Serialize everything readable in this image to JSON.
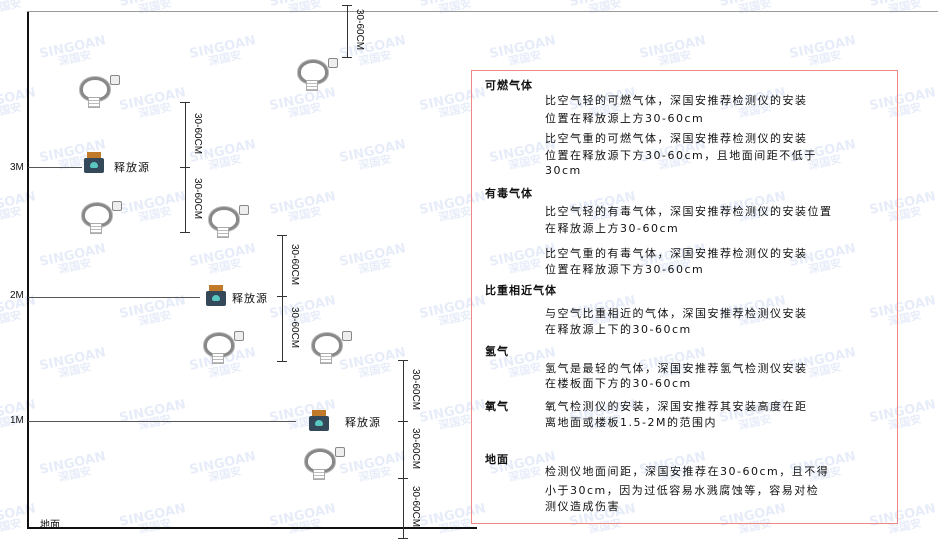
{
  "watermark": {
    "brand": "SINGOAN",
    "cn": "深国安"
  },
  "levels": {
    "m3": "3M",
    "m2": "2M",
    "m1": "1M",
    "ground": "地面"
  },
  "source_label": "释放源",
  "dim_label": "30-60CM",
  "info": {
    "flammable": {
      "title": "可燃气体",
      "lighter": [
        "比空气轻的可燃气体，深国安推荐检测仪的安装",
        "位置在释放源上方30-60cm"
      ],
      "heavier": [
        "比空气重的可燃气体，深国安推荐检测仪的安装",
        "位置在释放源下方30-60cm，且地面间距不低于",
        "30cm"
      ]
    },
    "toxic": {
      "title": "有毒气体",
      "lighter": [
        "比空气轻的有毒气体，深国安推荐检测仪的安装位置",
        "在释放源上方30-60cm"
      ],
      "heavier": [
        "比空气重的有毒气体，深国安推荐检测仪的安装",
        "位置在释放源下方30-60cm"
      ]
    },
    "similar": {
      "title": "比重相近气体",
      "lines": [
        "与空气比重相近的气体，深国安推荐检测仪安装",
        "在释放源上下的30-60cm"
      ]
    },
    "hydrogen": {
      "title": "氢气",
      "lines": [
        "氢气是最轻的气体，深国安推荐氢气检测仪安装",
        "在楼板面下方的30-60cm"
      ]
    },
    "oxygen": {
      "title": "氧气",
      "lines": [
        "氧气检测仪的安装，深国安推荐其安装高度在距",
        "离地面或楼板1.5-2M的范围内"
      ]
    },
    "ground": {
      "title": "地面",
      "lines": [
        "检测仪地面间距，深国安推荐在30-60cm，且不得",
        "小于30cm，因为过低容易水溅腐蚀等，容易对检",
        "测仪造成伤害"
      ]
    }
  }
}
